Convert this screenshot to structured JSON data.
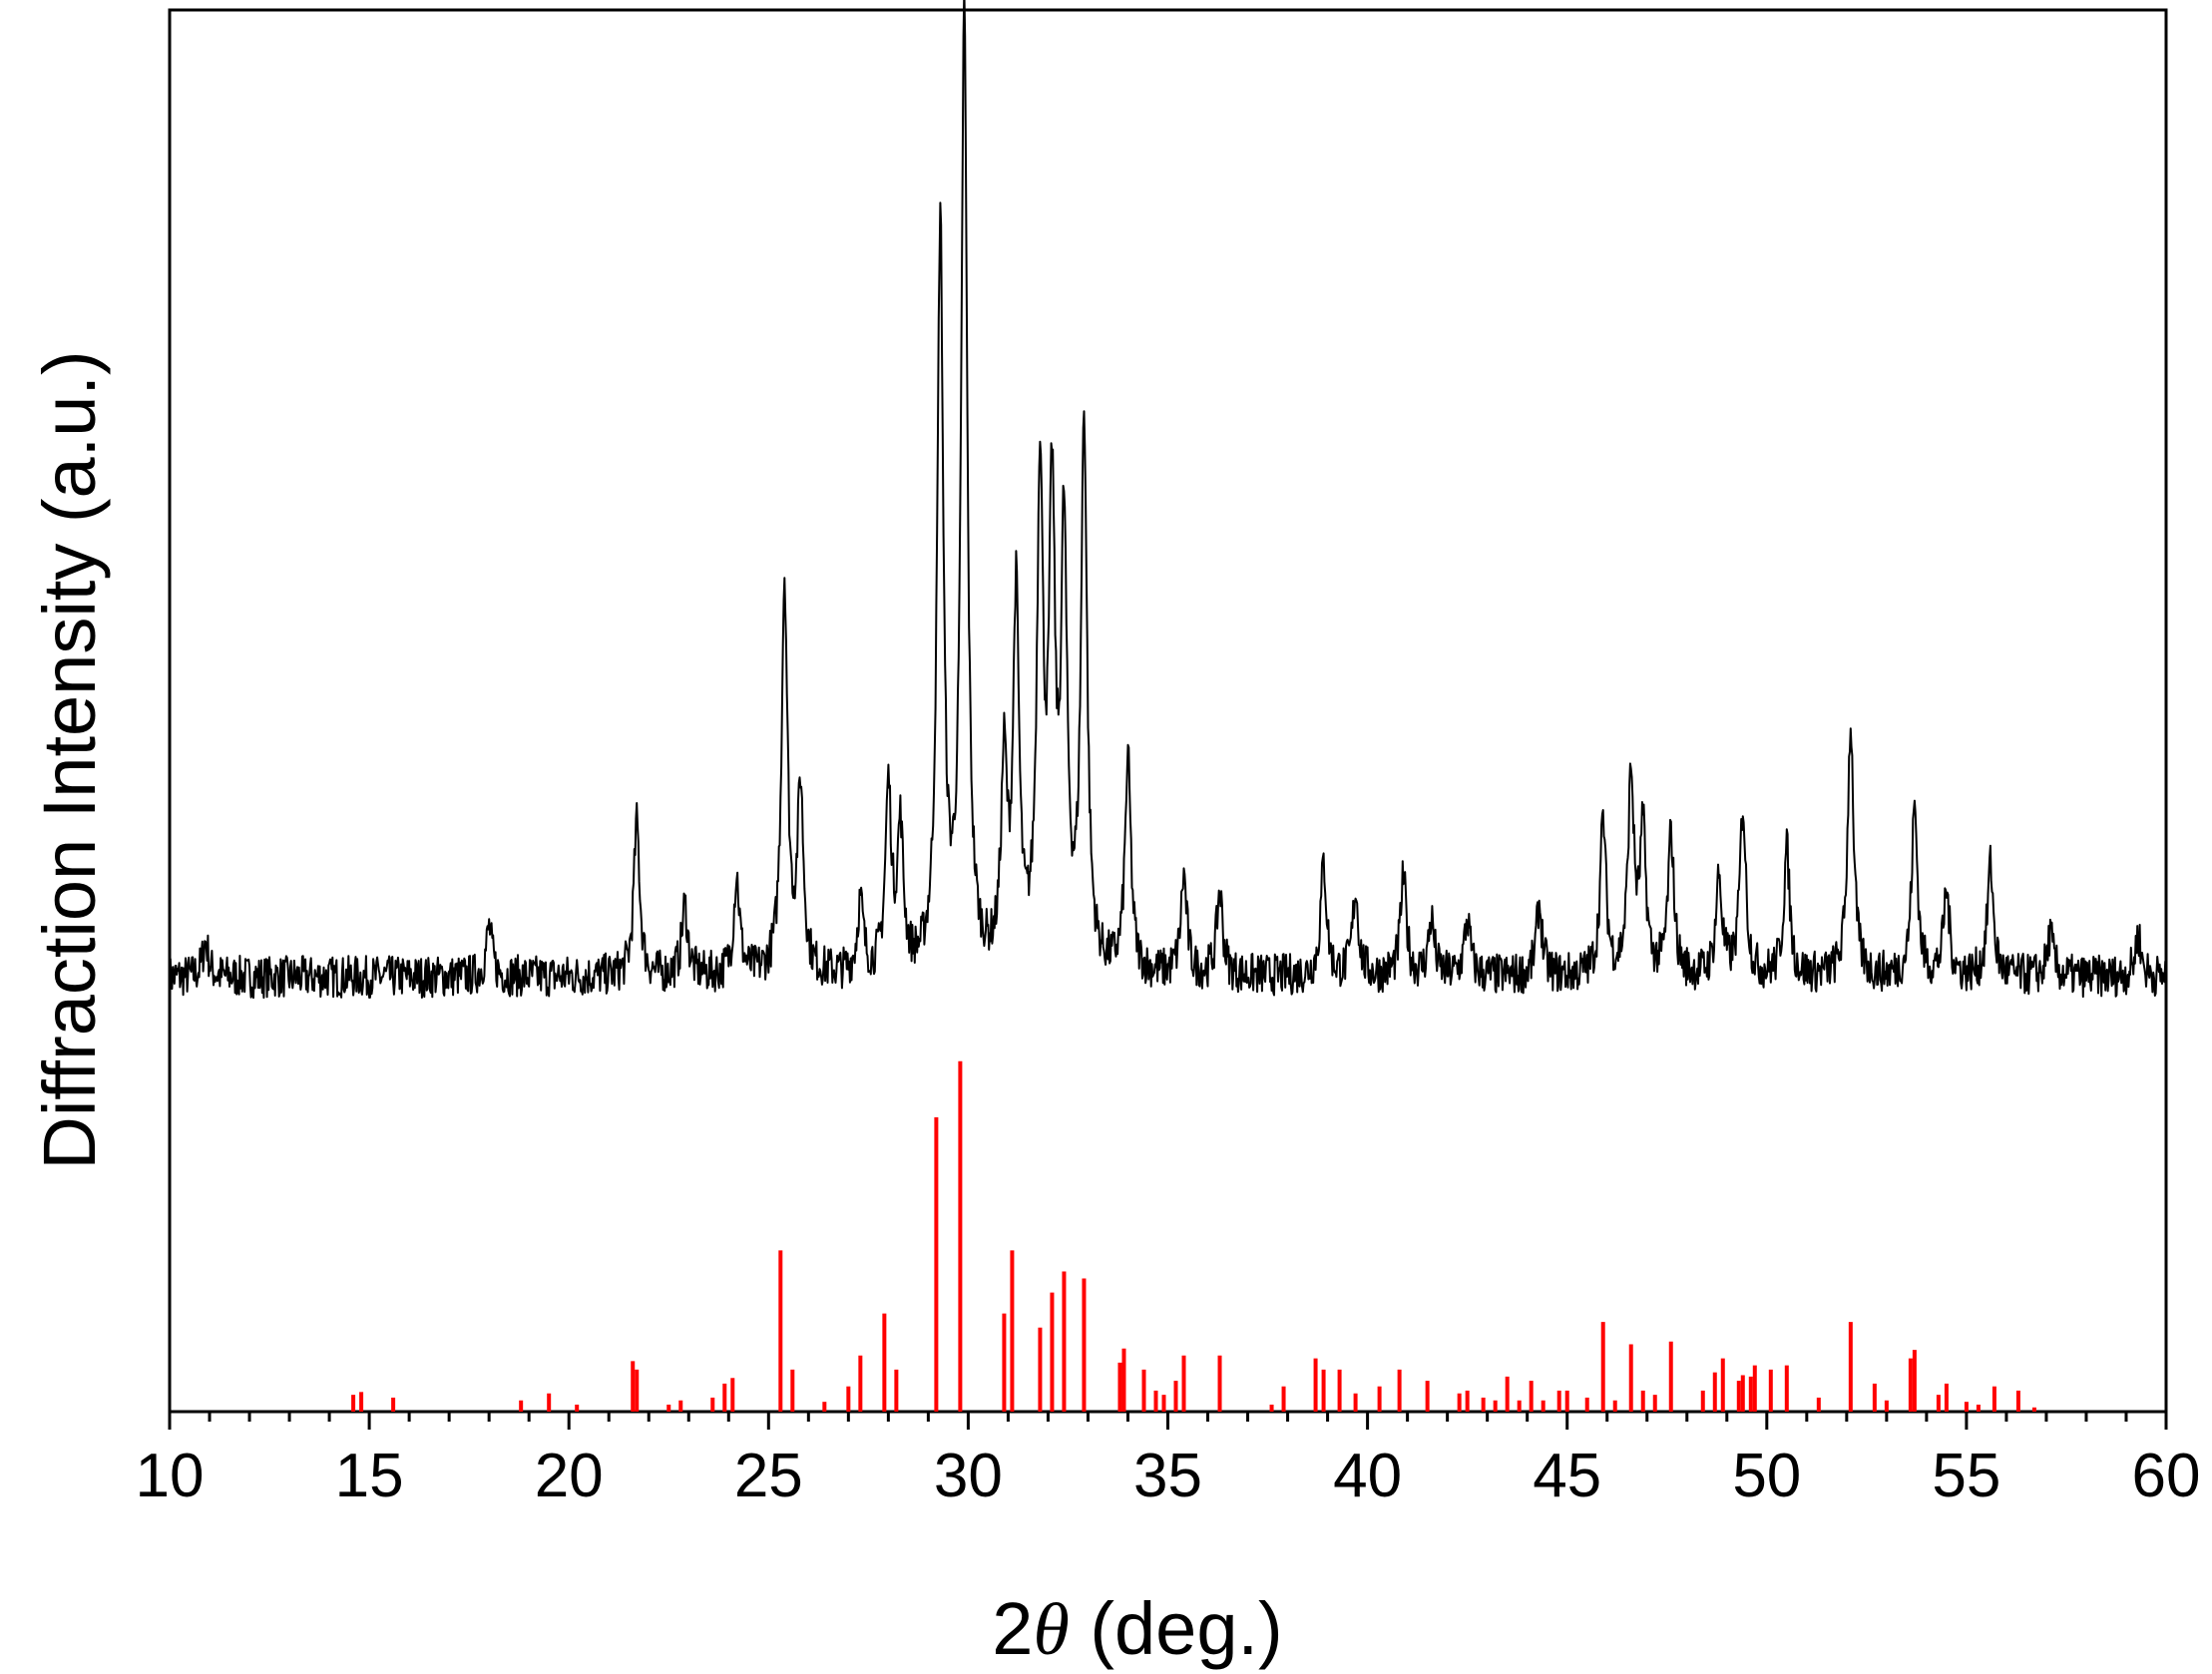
{
  "chart_data": {
    "type": "line",
    "xlabel": "2θ (deg.)",
    "xlabel_parts": {
      "prefix": "2",
      "symbol": "θ",
      "suffix": " (deg.)"
    },
    "ylabel": "Diffraction Intensity (a.u.)",
    "xlim": [
      10,
      60
    ],
    "ylim": [
      0,
      100
    ],
    "xticks": [
      10,
      15,
      20,
      25,
      30,
      35,
      40,
      45,
      50,
      55,
      60
    ],
    "xtick_labels": [
      "10",
      "15",
      "20",
      "25",
      "30",
      "35",
      "40",
      "45",
      "50",
      "55",
      "60"
    ],
    "yticks_shown": false,
    "grid": false,
    "legend": "none",
    "series": [
      {
        "kind": "pattern",
        "color": "#000000",
        "baseline": 31,
        "noise": 1.5,
        "peaks": [
          [
            10.9,
            2.5
          ],
          [
            18.0,
            3.5
          ],
          [
            21.7,
            11
          ],
          [
            22.9,
            5
          ],
          [
            24.2,
            7
          ],
          [
            25.4,
            28
          ],
          [
            25.8,
            13
          ],
          [
            27.3,
            5
          ],
          [
            28.0,
            13
          ],
          [
            28.3,
            10
          ],
          [
            29.3,
            53
          ],
          [
            29.9,
            68
          ],
          [
            30.9,
            14
          ],
          [
            31.2,
            26
          ],
          [
            31.8,
            35
          ],
          [
            32.1,
            32
          ],
          [
            32.4,
            30
          ],
          [
            32.9,
            39
          ],
          [
            34.0,
            15
          ],
          [
            35.4,
            7
          ],
          [
            36.3,
            6
          ],
          [
            38.9,
            8
          ],
          [
            39.7,
            6
          ],
          [
            40.9,
            7
          ],
          [
            41.6,
            4
          ],
          [
            42.5,
            4
          ],
          [
            44.3,
            5
          ],
          [
            45.9,
            11
          ],
          [
            46.6,
            14
          ],
          [
            46.9,
            10
          ],
          [
            47.6,
            10
          ],
          [
            48.8,
            7
          ],
          [
            49.4,
            12
          ],
          [
            50.5,
            9
          ],
          [
            52.1,
            18
          ],
          [
            53.7,
            12
          ],
          [
            54.5,
            6
          ],
          [
            55.6,
            8
          ],
          [
            57.1,
            3
          ],
          [
            59.3,
            3
          ]
        ]
      },
      {
        "kind": "sticks",
        "color": "#ff0000",
        "x": [
          14.6,
          14.8,
          15.6,
          18.8,
          19.5,
          20.2,
          21.6,
          21.7,
          22.5,
          22.8,
          23.6,
          23.9,
          24.1,
          25.3,
          25.6,
          26.4,
          27.0,
          27.3,
          27.9,
          28.2,
          29.2,
          29.8,
          30.9,
          31.1,
          31.8,
          32.1,
          32.4,
          32.9,
          33.8,
          33.9,
          34.4,
          34.7,
          34.9,
          35.2,
          35.4,
          36.3,
          37.6,
          37.9,
          38.7,
          38.9,
          39.3,
          39.7,
          40.3,
          40.8,
          41.5,
          42.3,
          42.5,
          42.9,
          43.2,
          43.5,
          43.8,
          44.1,
          44.4,
          44.8,
          45.0,
          45.5,
          45.9,
          46.2,
          46.6,
          46.9,
          47.2,
          47.6,
          48.4,
          48.7,
          48.9,
          49.3,
          49.4,
          49.6,
          49.7,
          50.1,
          50.5,
          51.3,
          52.1,
          52.7,
          53.0,
          53.6,
          53.7,
          54.3,
          54.5,
          55.0,
          55.3,
          55.7,
          56.3,
          56.7
        ],
        "y": [
          1.2,
          1.4,
          1.0,
          0.8,
          1.3,
          0.5,
          3.6,
          3.0,
          0.5,
          0.8,
          1.0,
          2.0,
          2.4,
          11.5,
          3.0,
          0.7,
          1.8,
          4.0,
          7.0,
          3.0,
          21.0,
          25.0,
          7.0,
          11.5,
          6.0,
          8.5,
          10.0,
          9.5,
          3.5,
          4.5,
          3.0,
          1.5,
          1.2,
          2.2,
          4.0,
          4.0,
          0.5,
          1.8,
          3.8,
          3.0,
          3.0,
          1.3,
          1.8,
          3.0,
          2.2,
          1.3,
          1.5,
          1.0,
          0.8,
          2.5,
          0.8,
          2.2,
          0.8,
          1.5,
          1.5,
          1.0,
          6.4,
          0.8,
          4.8,
          1.5,
          1.2,
          5.0,
          1.5,
          2.8,
          3.8,
          2.2,
          2.6,
          2.5,
          3.3,
          3.0,
          3.3,
          1.0,
          6.4,
          2.0,
          0.8,
          3.8,
          4.4,
          1.2,
          2.0,
          0.7,
          0.5,
          1.8,
          1.5,
          0.3
        ]
      }
    ]
  }
}
